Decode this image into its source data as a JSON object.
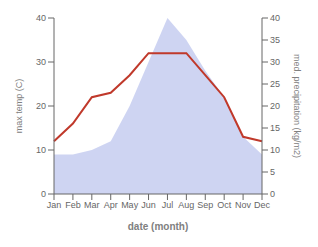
{
  "chart_data": {
    "type": "line",
    "xlabel": "date (month)",
    "ylabel": "max temp (C)",
    "y2label": "med. precipitation (kg/m2)",
    "categories": [
      "Jan",
      "Feb",
      "Mar",
      "Apr",
      "May",
      "Jun",
      "Jul",
      "Aug",
      "Sep",
      "Oct",
      "Nov",
      "Dec"
    ],
    "series": [
      {
        "type": "area",
        "axis": "y2",
        "color": "#c5cdf0",
        "values": [
          9,
          9,
          10,
          12,
          20,
          30,
          40,
          35,
          28,
          22,
          13,
          9
        ]
      },
      {
        "type": "line",
        "axis": "y",
        "color": "#c0392b",
        "values": [
          12,
          16,
          22,
          23,
          27,
          32,
          32,
          32,
          27,
          22,
          13,
          12
        ]
      }
    ],
    "ylim": [
      0,
      40
    ],
    "yticks": [
      0,
      10,
      20,
      30,
      40
    ],
    "y2lim": [
      0,
      40
    ],
    "y2ticks": [
      0,
      5,
      10,
      15,
      20,
      25,
      30,
      35,
      40
    ],
    "grid": false
  }
}
